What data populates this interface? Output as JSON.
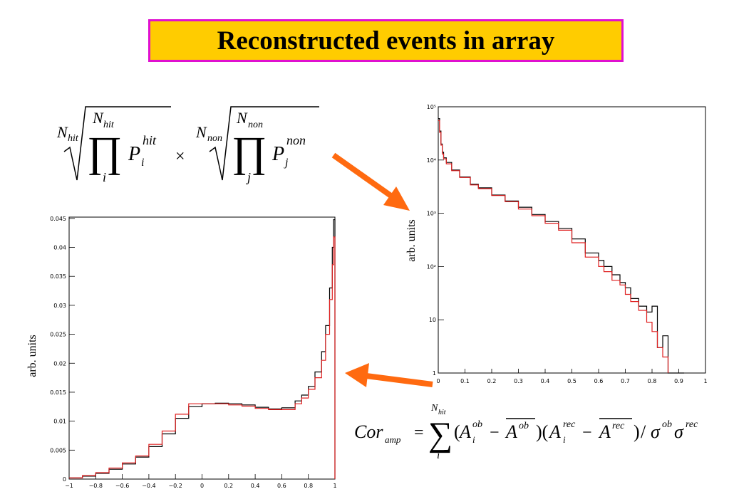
{
  "slide": {
    "title": "Reconstructed events in array"
  },
  "formula_top": {
    "n_hit": "N",
    "hit_sub": "hit",
    "prod": "∏",
    "index_i": "i",
    "p": "P",
    "p_sup": "hit",
    "times": "×",
    "non_sub": "non",
    "index_j": "j",
    "p_sup2": "non"
  },
  "formula_bottom": {
    "cor": "Cor",
    "cor_sub": "amp",
    "equals": "=",
    "sum": "∑",
    "sum_top": "N",
    "sum_top_sub": "hit",
    "sum_bottom": "i",
    "a": "A",
    "ob": "ob",
    "rec": "rec",
    "i": "i",
    "minus": "−",
    "slash": "/",
    "sigma": "σ"
  },
  "colors": {
    "title_bg": "#ffcc00",
    "title_border": "#e010d0",
    "arrow": "#ff6a10",
    "series_black": "#000000",
    "series_red": "#e02020"
  },
  "chart_data": [
    {
      "type": "line",
      "scale": "log",
      "ylabel": "arb. units",
      "xlim": [
        0,
        1
      ],
      "ylim": [
        1,
        100000
      ],
      "xticks": [
        "0",
        "0.1",
        "0.2",
        "0.3",
        "0.4",
        "0.5",
        "0.6",
        "0.7",
        "0.8",
        "0.9",
        "1"
      ],
      "yticks": [
        "1",
        "10",
        "10²",
        "10³",
        "10⁴",
        "10⁵"
      ],
      "series": [
        {
          "x": [
            0,
            0.005,
            0.01,
            0.015,
            0.02,
            0.03,
            0.05,
            0.08,
            0.12,
            0.15,
            0.2,
            0.25,
            0.3,
            0.35,
            0.4,
            0.45,
            0.5,
            0.55,
            0.6,
            0.62,
            0.65,
            0.68,
            0.7,
            0.72,
            0.75,
            0.78,
            0.8,
            0.82,
            0.84,
            0.86,
            0.88,
            0.9,
            0.92
          ],
          "y": [
            60000,
            35000,
            20000,
            14000,
            11000,
            9000,
            6500,
            4800,
            3500,
            3000,
            2200,
            1700,
            1300,
            950,
            700,
            520,
            330,
            180,
            130,
            100,
            70,
            50,
            40,
            25,
            18,
            14,
            18,
            3,
            5,
            1,
            1,
            1,
            1
          ]
        },
        {
          "x": [
            0,
            0.005,
            0.01,
            0.015,
            0.02,
            0.03,
            0.05,
            0.08,
            0.12,
            0.15,
            0.2,
            0.25,
            0.3,
            0.35,
            0.4,
            0.45,
            0.5,
            0.55,
            0.6,
            0.62,
            0.65,
            0.68,
            0.7,
            0.72,
            0.75,
            0.78,
            0.8,
            0.82,
            0.84,
            0.86
          ],
          "y": [
            55000,
            33000,
            19000,
            13000,
            10500,
            8500,
            6300,
            4700,
            3400,
            2900,
            2150,
            1650,
            1200,
            900,
            650,
            480,
            280,
            150,
            100,
            80,
            55,
            45,
            30,
            22,
            15,
            9,
            6,
            3,
            2,
            1
          ]
        }
      ]
    },
    {
      "type": "line",
      "scale": "linear",
      "ylabel": "arb. units",
      "xlim": [
        -1,
        1
      ],
      "ylim": [
        0,
        0.045
      ],
      "xticks": [
        "−1",
        "−0.8",
        "−0.6",
        "−0.4",
        "−0.2",
        "0",
        "0.2",
        "0.4",
        "0.6",
        "0.8",
        "1"
      ],
      "yticks": [
        "0",
        "0.005",
        "0.01",
        "0.015",
        "0.02",
        "0.025",
        "0.03",
        "0.035",
        "0.04",
        "0.045"
      ],
      "series": [
        {
          "x": [
            -1,
            -0.9,
            -0.8,
            -0.7,
            -0.6,
            -0.5,
            -0.4,
            -0.3,
            -0.2,
            -0.1,
            0,
            0.1,
            0.2,
            0.3,
            0.4,
            0.5,
            0.6,
            0.7,
            0.75,
            0.8,
            0.85,
            0.9,
            0.93,
            0.96,
            0.98,
            0.99,
            1
          ],
          "y": [
            0.0002,
            0.0005,
            0.001,
            0.0017,
            0.0026,
            0.0038,
            0.0056,
            0.0078,
            0.0105,
            0.0125,
            0.013,
            0.0131,
            0.013,
            0.0128,
            0.0124,
            0.0121,
            0.0123,
            0.0135,
            0.0145,
            0.016,
            0.0185,
            0.022,
            0.0265,
            0.033,
            0.04,
            0.0448,
            0
          ]
        },
        {
          "x": [
            -1,
            -0.9,
            -0.8,
            -0.7,
            -0.6,
            -0.5,
            -0.4,
            -0.3,
            -0.2,
            -0.1,
            0,
            0.1,
            0.2,
            0.3,
            0.4,
            0.5,
            0.6,
            0.7,
            0.75,
            0.8,
            0.85,
            0.9,
            0.93,
            0.96,
            0.98,
            0.99,
            1
          ],
          "y": [
            0.0002,
            0.0006,
            0.0011,
            0.0019,
            0.0028,
            0.004,
            0.006,
            0.0083,
            0.0112,
            0.013,
            0.013,
            0.013,
            0.0128,
            0.0126,
            0.0122,
            0.012,
            0.012,
            0.013,
            0.014,
            0.0155,
            0.0175,
            0.0205,
            0.025,
            0.031,
            0.037,
            0.0418,
            0
          ]
        }
      ]
    }
  ]
}
